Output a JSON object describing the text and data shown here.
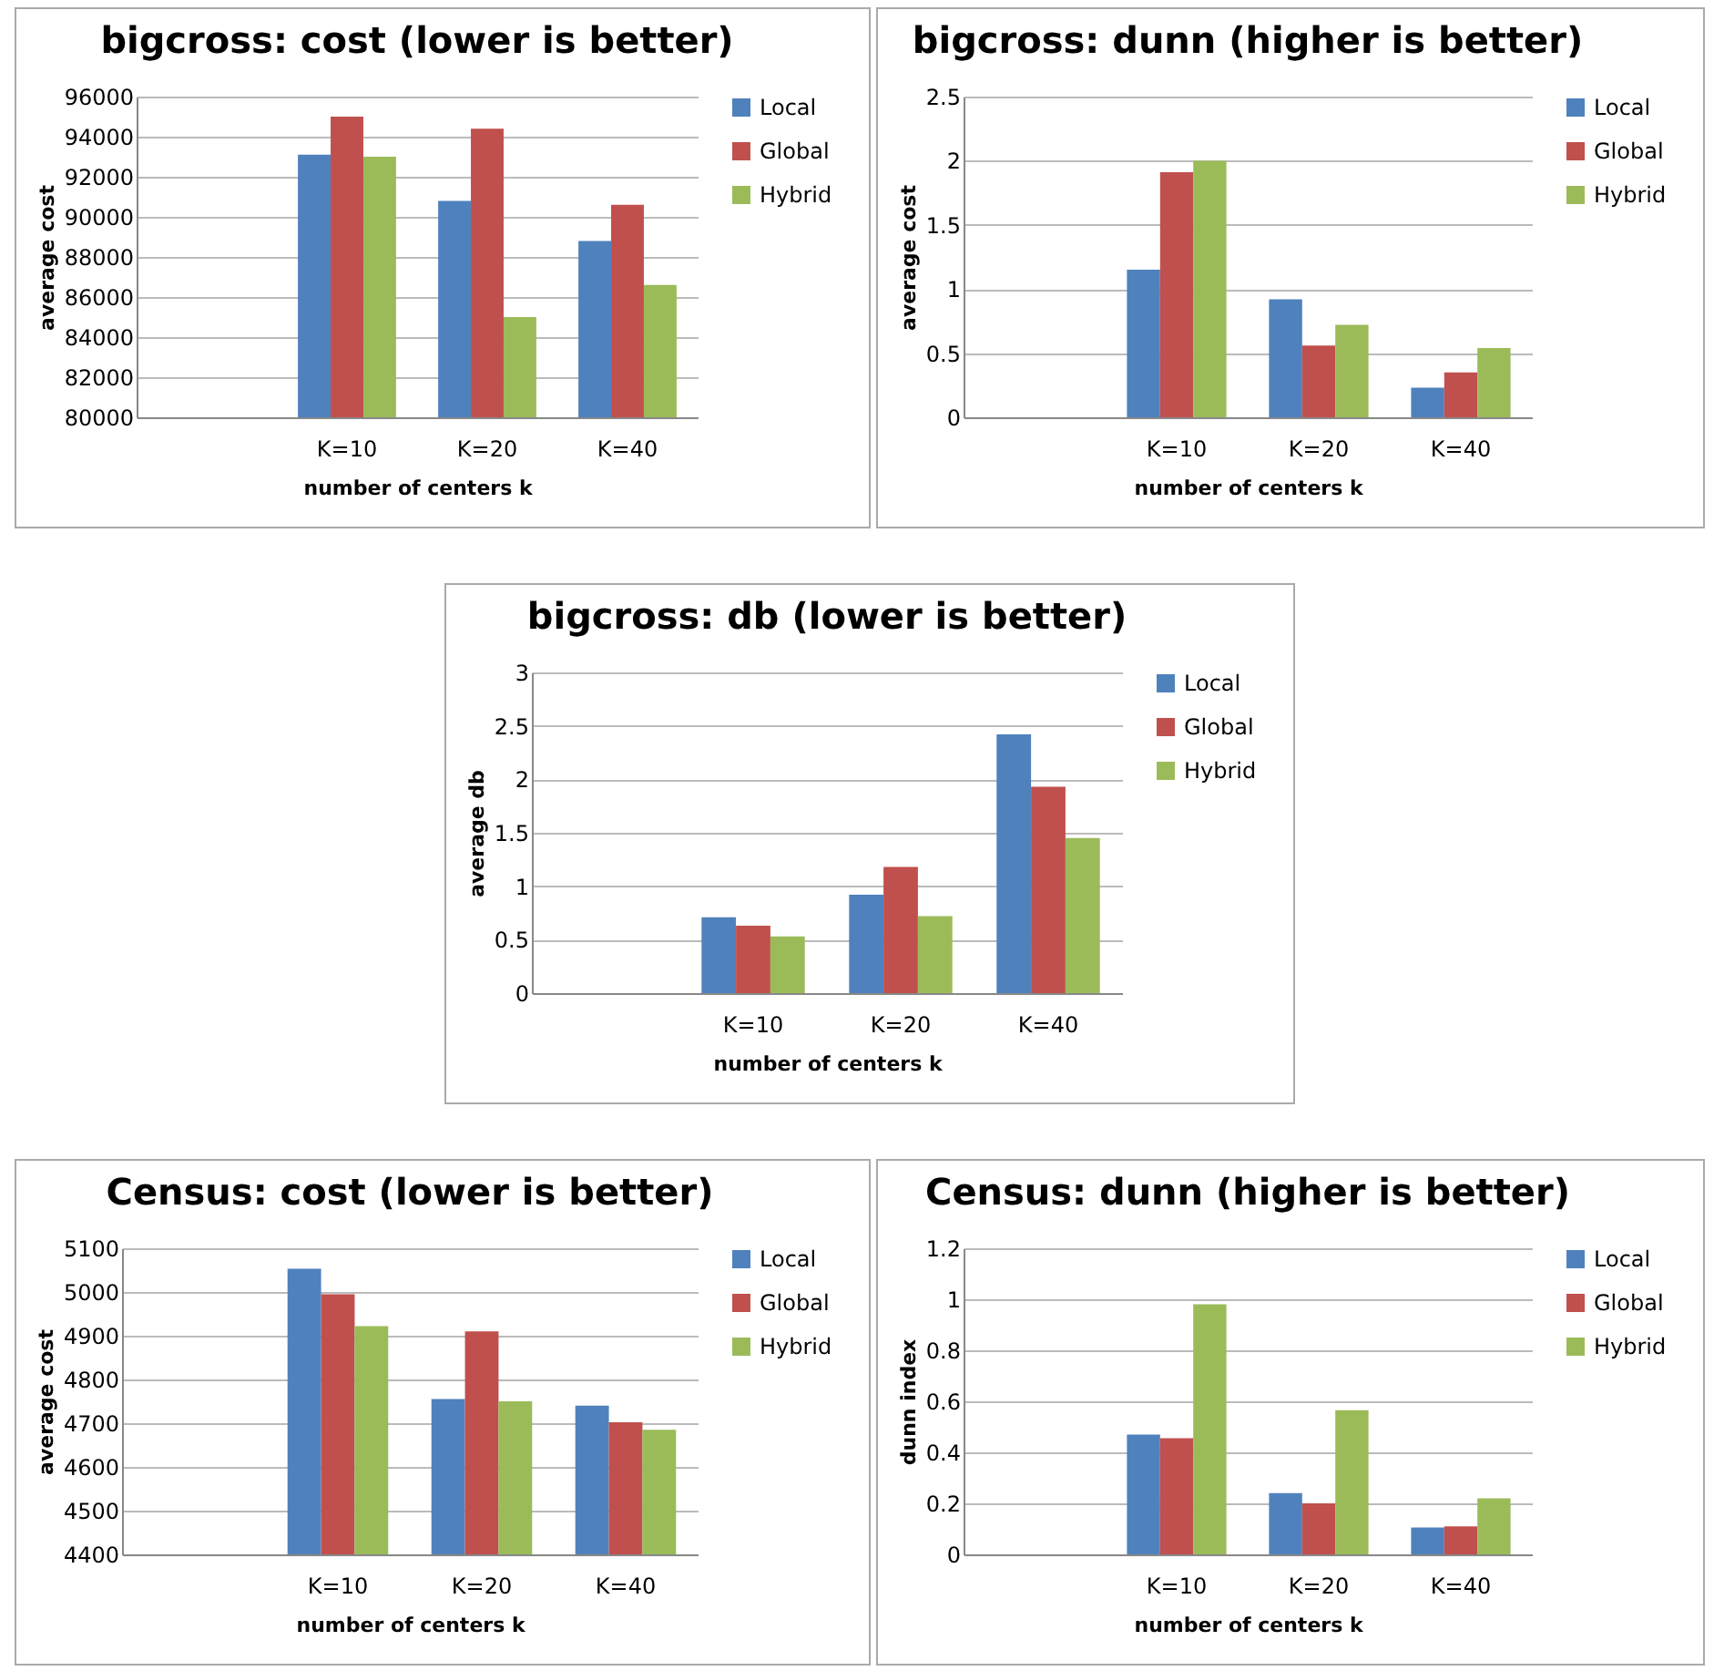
{
  "chart_data": [
    {
      "type": "bar",
      "title": "bigcross: cost (lower is better)",
      "xlabel": "number of centers k",
      "ylabel": "average cost",
      "categories": [
        null,
        "K=10",
        "K=20",
        "K=40"
      ],
      "ylim": [
        80000,
        96000
      ],
      "yticks": [
        80000,
        82000,
        84000,
        86000,
        88000,
        90000,
        92000,
        94000,
        96000
      ],
      "grid": "y",
      "legend": "right",
      "series": [
        {
          "name": "Local",
          "color": "#4f81bd",
          "values": [
            null,
            93100,
            90800,
            88800
          ]
        },
        {
          "name": "Global",
          "color": "#c0504d",
          "values": [
            null,
            95000,
            94400,
            90600
          ]
        },
        {
          "name": "Hybrid",
          "color": "#9bbb59",
          "values": [
            null,
            93000,
            85000,
            86600
          ]
        }
      ]
    },
    {
      "type": "bar",
      "title": "bigcross: dunn (higher is better)",
      "xlabel": "number of centers k",
      "ylabel": "average cost",
      "categories": [
        null,
        "K=10",
        "K=20",
        "K=40"
      ],
      "ylim": [
        0,
        2.5
      ],
      "yticks": [
        0,
        0.5,
        1,
        1.5,
        2,
        2.5
      ],
      "grid": "y",
      "legend": "right",
      "series": [
        {
          "name": "Local",
          "color": "#4f81bd",
          "values": [
            null,
            1.15,
            0.92,
            0.23
          ]
        },
        {
          "name": "Global",
          "color": "#c0504d",
          "values": [
            null,
            1.91,
            0.56,
            0.35
          ]
        },
        {
          "name": "Hybrid",
          "color": "#9bbb59",
          "values": [
            null,
            2.0,
            0.72,
            0.54
          ]
        }
      ]
    },
    {
      "type": "bar",
      "title": "bigcross: db (lower is better)",
      "xlabel": "number of centers k",
      "ylabel": "average db",
      "categories": [
        null,
        "K=10",
        "K=20",
        "K=40"
      ],
      "ylim": [
        0,
        3
      ],
      "yticks": [
        0,
        0.5,
        1,
        1.5,
        2,
        2.5,
        3
      ],
      "grid": "y",
      "legend": "right",
      "series": [
        {
          "name": "Local",
          "color": "#4f81bd",
          "values": [
            null,
            0.71,
            0.92,
            2.42
          ]
        },
        {
          "name": "Global",
          "color": "#c0504d",
          "values": [
            null,
            0.63,
            1.18,
            1.93
          ]
        },
        {
          "name": "Hybrid",
          "color": "#9bbb59",
          "values": [
            null,
            0.53,
            0.72,
            1.45
          ]
        }
      ]
    },
    {
      "type": "bar",
      "title": "Census: cost (lower is better)",
      "xlabel": "number of centers k",
      "ylabel": "average cost",
      "categories": [
        null,
        "K=10",
        "K=20",
        "K=40"
      ],
      "ylim": [
        4400,
        5100
      ],
      "yticks": [
        4400,
        4500,
        4600,
        4700,
        4800,
        4900,
        5000,
        5100
      ],
      "grid": "y",
      "legend": "right",
      "series": [
        {
          "name": "Local",
          "color": "#4f81bd",
          "values": [
            null,
            5053,
            4755,
            4740
          ]
        },
        {
          "name": "Global",
          "color": "#c0504d",
          "values": [
            null,
            4995,
            4910,
            4702
          ]
        },
        {
          "name": "Hybrid",
          "color": "#9bbb59",
          "values": [
            null,
            4922,
            4750,
            4685
          ]
        }
      ]
    },
    {
      "type": "bar",
      "title": "Census: dunn (higher is better)",
      "xlabel": "number of centers k",
      "ylabel": "dunn index",
      "categories": [
        null,
        "K=10",
        "K=20",
        "K=40"
      ],
      "ylim": [
        0,
        1.2
      ],
      "yticks": [
        0,
        0.2,
        0.4,
        0.6,
        0.8,
        1,
        1.2
      ],
      "grid": "y",
      "legend": "right",
      "series": [
        {
          "name": "Local",
          "color": "#4f81bd",
          "values": [
            null,
            0.47,
            0.24,
            0.105
          ]
        },
        {
          "name": "Global",
          "color": "#c0504d",
          "values": [
            null,
            0.455,
            0.2,
            0.11
          ]
        },
        {
          "name": "Hybrid",
          "color": "#9bbb59",
          "values": [
            null,
            0.98,
            0.565,
            0.22
          ]
        }
      ]
    }
  ]
}
